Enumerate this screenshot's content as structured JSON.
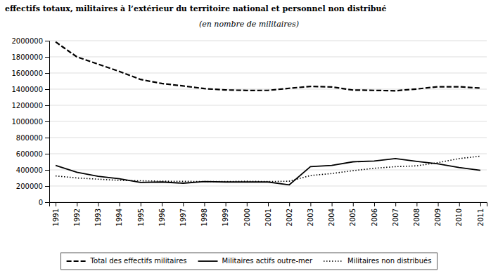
{
  "chart_data": {
    "type": "line",
    "title": "effectifs totaux, militaires à l’extérieur du territoire national et personnel non distribué",
    "subtitle": "(en nombre de militaires)",
    "x": [
      1991,
      1992,
      1993,
      1994,
      1995,
      1996,
      1997,
      1998,
      1999,
      2000,
      2001,
      2002,
      2003,
      2004,
      2005,
      2006,
      2007,
      2008,
      2009,
      2010,
      2011
    ],
    "series": [
      {
        "name": "Total des effectifs militaires",
        "color": "#000000",
        "line_style": "dashed",
        "values": [
          1985000,
          1800000,
          1710000,
          1620000,
          1520000,
          1470000,
          1440000,
          1407000,
          1390000,
          1384000,
          1385000,
          1411000,
          1434000,
          1427000,
          1389000,
          1385000,
          1380000,
          1402000,
          1430000,
          1430000,
          1413000
        ]
      },
      {
        "name": "Militaires actifs outre-mer",
        "color": "#000000",
        "line_style": "solid",
        "values": [
          455000,
          370000,
          320000,
          290000,
          245000,
          250000,
          235000,
          255000,
          250000,
          250000,
          250000,
          215000,
          440000,
          455000,
          500000,
          510000,
          540000,
          505000,
          475000,
          430000,
          395000
        ]
      },
      {
        "name": "Militaires non distribués",
        "color": "#000000",
        "line_style": "dotted",
        "values": [
          325000,
          300000,
          285000,
          270000,
          265000,
          260000,
          258000,
          256000,
          255000,
          260000,
          255000,
          260000,
          330000,
          355000,
          390000,
          420000,
          440000,
          450000,
          490000,
          540000,
          570000
        ]
      }
    ],
    "xlim": [
      1990.7,
      2011.3
    ],
    "xticks": [
      1991,
      1992,
      1993,
      1994,
      1995,
      1996,
      1997,
      1998,
      1999,
      2000,
      2001,
      2002,
      2003,
      2004,
      2005,
      2006,
      2007,
      2008,
      2009,
      2010,
      2011
    ],
    "ylim": [
      0,
      2000000
    ],
    "yticks": [
      0,
      200000,
      400000,
      600000,
      800000,
      1000000,
      1200000,
      1400000,
      1600000,
      1800000,
      2000000
    ],
    "grid": "y",
    "legend": "bottom"
  }
}
